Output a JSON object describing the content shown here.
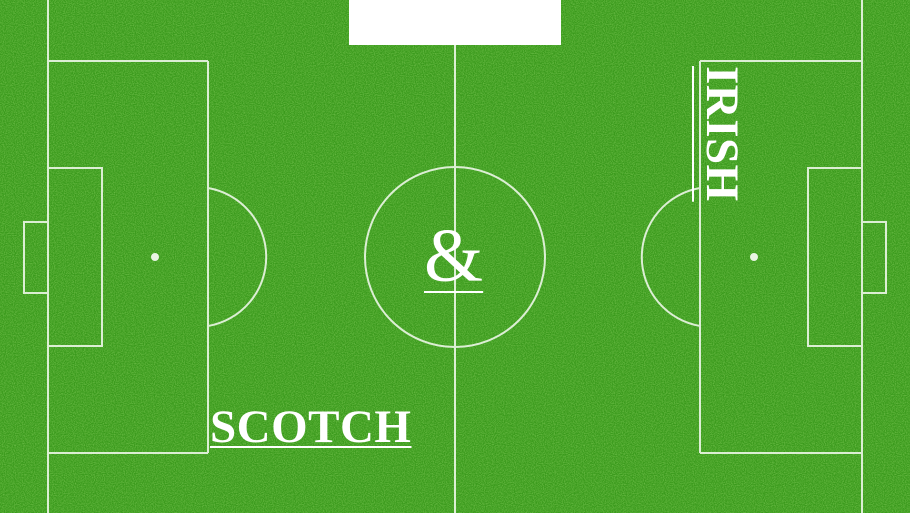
{
  "slide": {
    "word_scotch": "SCOTCH",
    "ampersand": "&",
    "word_irish": "IRISH"
  },
  "colors": {
    "grass": "#3a9a1c",
    "grass_dark": "#2c7f12",
    "grass_light": "#4fb529",
    "line": "#e9f5e3",
    "text": "#ffffff"
  }
}
